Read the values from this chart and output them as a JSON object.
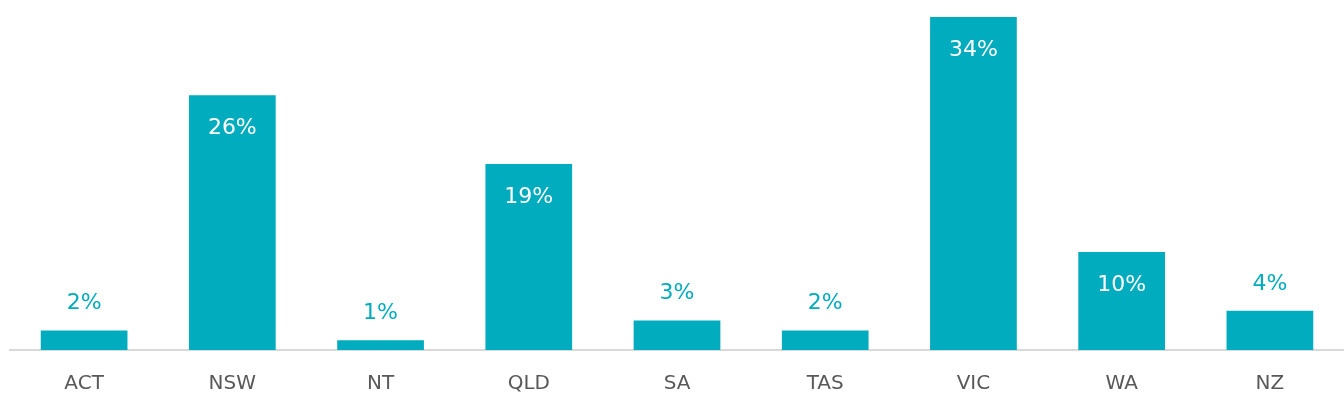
{
  "chart_data": {
    "type": "bar",
    "categories": [
      "ACT",
      "NSW",
      "NT",
      "QLD",
      "SA",
      "TAS",
      "VIC",
      "WA",
      "NZ"
    ],
    "values": [
      2,
      26,
      1,
      19,
      3,
      2,
      34,
      10,
      4
    ],
    "value_labels": [
      "2%",
      "26%",
      "1%",
      "19%",
      "3%",
      "2%",
      "34%",
      "10%",
      "4%"
    ],
    "color": "#00acbd",
    "grid": false,
    "legend": false
  }
}
